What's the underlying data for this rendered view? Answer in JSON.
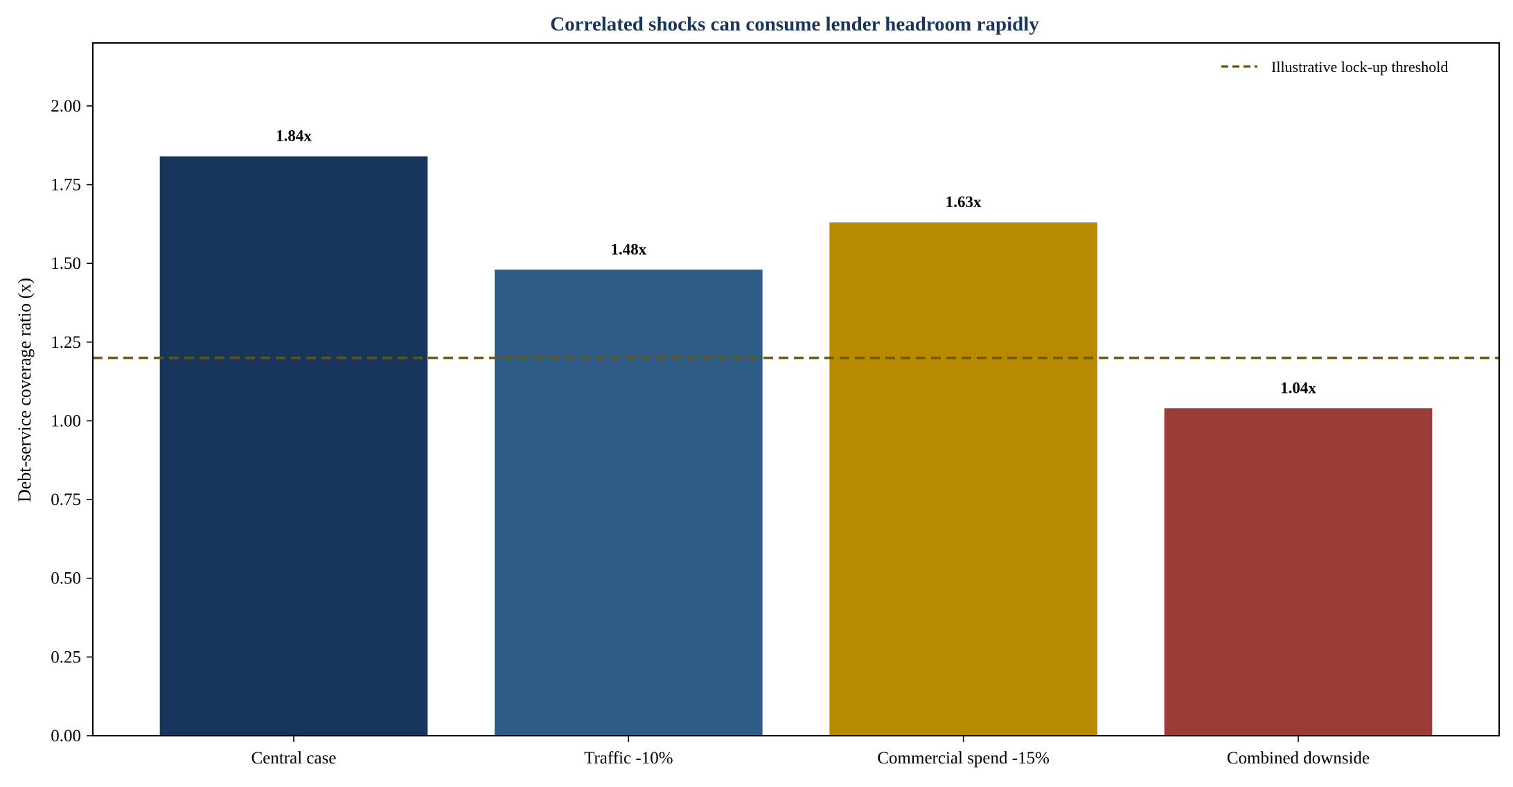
{
  "chart_data": {
    "type": "bar",
    "title": "Correlated shocks can consume lender headroom rapidly",
    "xlabel": "",
    "ylabel": "Debt-service coverage ratio (x)",
    "categories": [
      "Central case",
      "Traffic -10%",
      "Commercial spend -15%",
      "Combined downside"
    ],
    "values": [
      1.84,
      1.48,
      1.63,
      1.04
    ],
    "value_labels": [
      "1.84x",
      "1.48x",
      "1.63x",
      "1.04x"
    ],
    "colors": [
      "#18365c",
      "#2f5b87",
      "#b88a00",
      "#9b3c37"
    ],
    "ylim": [
      0,
      2.2
    ],
    "yticks": [
      0.0,
      0.25,
      0.5,
      0.75,
      1.0,
      1.25,
      1.5,
      1.75,
      2.0
    ],
    "ytick_labels": [
      "0.00",
      "0.25",
      "0.50",
      "0.75",
      "1.00",
      "1.25",
      "1.50",
      "1.75",
      "2.00"
    ],
    "grid": false,
    "reference_line": {
      "value": 1.2,
      "label": "Illustrative lock-up threshold",
      "style": "dashed",
      "color": "#6b5600"
    },
    "legend": {
      "placement": "top-right",
      "entries": [
        "Illustrative lock-up threshold"
      ]
    },
    "title_color": "#18365c"
  }
}
